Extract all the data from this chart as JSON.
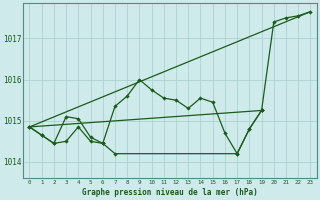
{
  "title": "Graphe pression niveau de la mer (hPa)",
  "xlabel_ticks": [
    0,
    1,
    2,
    3,
    4,
    5,
    6,
    7,
    8,
    9,
    10,
    11,
    12,
    13,
    14,
    15,
    16,
    17,
    18,
    19,
    20,
    21,
    22,
    23
  ],
  "ylim": [
    1013.6,
    1017.85
  ],
  "yticks": [
    1014,
    1015,
    1016,
    1017
  ],
  "bg_color": "#ceeaea",
  "grid_color": "#a8cccc",
  "line_color": "#1a5c1a",
  "trend1_x": [
    0,
    23
  ],
  "trend1_y": [
    1014.85,
    1017.65
  ],
  "trend2_x": [
    0,
    19
  ],
  "trend2_y": [
    1014.85,
    1015.25
  ],
  "zigzag_x": [
    0,
    1,
    2,
    3,
    4,
    5,
    6,
    7,
    8,
    9,
    10,
    11,
    12,
    13,
    14,
    15,
    16,
    17,
    18,
    19
  ],
  "zigzag_y": [
    1014.85,
    1014.65,
    1014.45,
    1015.1,
    1015.05,
    1014.6,
    1014.45,
    1015.35,
    1015.6,
    1016.0,
    1015.75,
    1015.55,
    1015.5,
    1015.3,
    1015.55,
    1015.45,
    1014.7,
    1014.2,
    1014.8,
    1015.25
  ],
  "bottom_x": [
    0,
    1,
    2,
    3,
    4,
    5,
    6,
    7,
    17,
    18,
    19
  ],
  "bottom_y": [
    1014.85,
    1014.65,
    1014.45,
    1014.5,
    1014.85,
    1014.5,
    1014.45,
    1014.2,
    1014.2,
    1014.8,
    1015.25
  ],
  "right_x": [
    19,
    20,
    21,
    22,
    23
  ],
  "right_y": [
    1015.25,
    1017.4,
    1017.5,
    1017.55,
    1017.65
  ]
}
